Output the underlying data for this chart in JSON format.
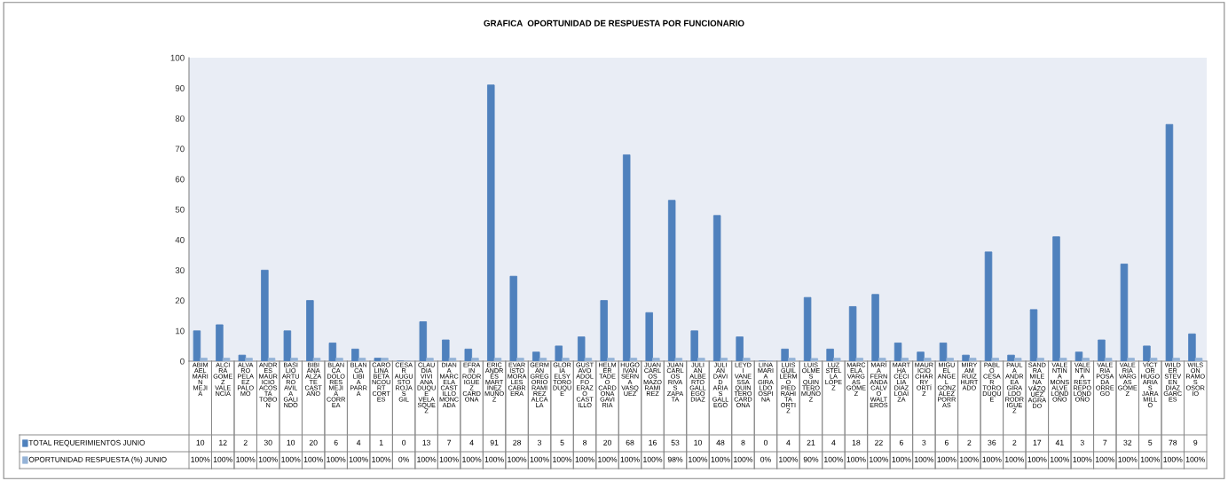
{
  "chart_data": {
    "type": "bar",
    "title": "GRAFICA  OPORTUNIDAD DE RESPUESTA POR FUNCIONARIO",
    "categories": [
      "ABIMAEL MARIN MEJIA",
      "ALCIRA GOMEZ VALENCIA",
      "ALVARO PELAEZ PALOMO",
      "ANDRES MAURICIO ACOSTA TOBON",
      "BASILIO ARTURO AVILA GALINDO",
      "BIBIANA ALZATE CASTAÑO",
      "BLANCA DOLORES MEJIA CORREA",
      "BLANCA LIBIA PARRA",
      "CAROLINA BETANCOURT CORTES",
      "CESAR AUGUSTO ROJAS GIL",
      "CLAUDIA VIVIANA DUQUE VELASQUEZ",
      "DIANA MARCELA CASTILLO MONCADA",
      "EFRAIN RODRIGUEZ CARDONA",
      "ERIC ANDRÉS MARTÍNEZ MUÑOZ",
      "EVARISTO MORALES CABRERA",
      "GERMAN GREGORIO RAMIREZ ALCALA",
      "GLORIA ELSY TORO DUQUE",
      "GUSTAVO ADOLFO ERAZO CASTILLO",
      "HELMER TADEO CARDONA GAVIRIA",
      "HUGO IVAN SERNA VASQUEZ",
      "JUAN CARLOS MAZO RAMIREZ",
      "JUAN CARLOS RIVAS ZAPATA",
      "JULIAN ALBERTO GALLEGO DIAZ",
      "JULIAN DAVID ARIAS GALLEGO",
      "LEYDI VANESSA QUINTERO CARDONA",
      "LINA MARIA GIRALDO OSPINA",
      "LUIS GUILLERMO PIEDRAHITA ORTIZ",
      "LUIS OLMES QUINTERO MUÑOZ",
      "LUZ STELLA LÓPEZ",
      "MARCELA VARGAS GÓMEZ",
      "MARÍA FERNANDA CALVO WALTEROS",
      "MARTHA CECILIA DIAZ LOAIZA",
      "MAURICIO CHARRY ORTÍZ",
      "MIGUEL ANGEL GONZALEZ PORRAS",
      "MIRYAM RUIZ HURTADO",
      "PABLO CESAR TORO DUQUE",
      "PAULA ANDREA GIRALDO RODRIGUEZ",
      "SANDRA MILENA VÁZQUEZ AGRADO",
      "VALENTINA MONSALVE LONDOÑO",
      "VALENTINA RESTREPO LONDOÑO",
      "VALERIA POSADA ORREGO",
      "VALERIA VARGAS GÓMEZ",
      "VÍCTOR HUGO ARIAS JARAMILLO",
      "WILDER STEVEN DIAZ GARCES",
      "WILSON RAMOS OSORIO"
    ],
    "series": [
      {
        "name": "TOTAL REQUERIMIENTOS JUNIO",
        "color": "#4f81bd",
        "values": [
          10,
          12,
          2,
          30,
          10,
          20,
          6,
          4,
          1,
          0,
          13,
          7,
          4,
          91,
          28,
          3,
          5,
          8,
          20,
          68,
          16,
          53,
          10,
          48,
          8,
          0,
          4,
          21,
          4,
          18,
          22,
          6,
          3,
          6,
          2,
          36,
          2,
          17,
          41,
          3,
          7,
          32,
          5,
          78,
          9
        ],
        "value_labels": [
          "10",
          "12",
          "2",
          "30",
          "10",
          "20",
          "6",
          "4",
          "1",
          "0",
          "13",
          "7",
          "4",
          "91",
          "28",
          "3",
          "5",
          "8",
          "20",
          "68",
          "16",
          "53",
          "10",
          "48",
          "8",
          "0",
          "4",
          "21",
          "4",
          "18",
          "22",
          "6",
          "3",
          "6",
          "2",
          "36",
          "2",
          "17",
          "41",
          "3",
          "7",
          "32",
          "5",
          "78",
          "9"
        ]
      },
      {
        "name": "OPORTUNIDAD RESPUESTA (%) JUNIO",
        "color": "#95b3d7",
        "values": [
          1,
          1,
          1,
          1,
          1,
          1,
          1,
          1,
          1,
          0,
          1,
          1,
          1,
          1,
          1,
          1,
          1,
          1,
          1,
          1,
          1,
          0.98,
          1,
          1,
          1,
          0,
          1,
          0.9,
          1,
          1,
          1,
          1,
          1,
          1,
          1,
          1,
          1,
          1,
          1,
          1,
          1,
          1,
          1,
          1,
          1
        ],
        "value_labels": [
          "100%",
          "100%",
          "100%",
          "100%",
          "100%",
          "100%",
          "100%",
          "100%",
          "100%",
          "0%",
          "100%",
          "100%",
          "100%",
          "100%",
          "100%",
          "100%",
          "100%",
          "100%",
          "100%",
          "100%",
          "100%",
          "98%",
          "100%",
          "100%",
          "100%",
          "0%",
          "100%",
          "90%",
          "100%",
          "100%",
          "100%",
          "100%",
          "100%",
          "100%",
          "100%",
          "100%",
          "100%",
          "100%",
          "100%",
          "100%",
          "100%",
          "100%",
          "100%",
          "100%",
          "100%"
        ]
      }
    ],
    "legend": "bottom left",
    "ylim": [
      0,
      100
    ],
    "yticks": [
      0,
      10,
      20,
      30,
      40,
      50,
      60,
      70,
      80,
      90,
      100
    ]
  }
}
